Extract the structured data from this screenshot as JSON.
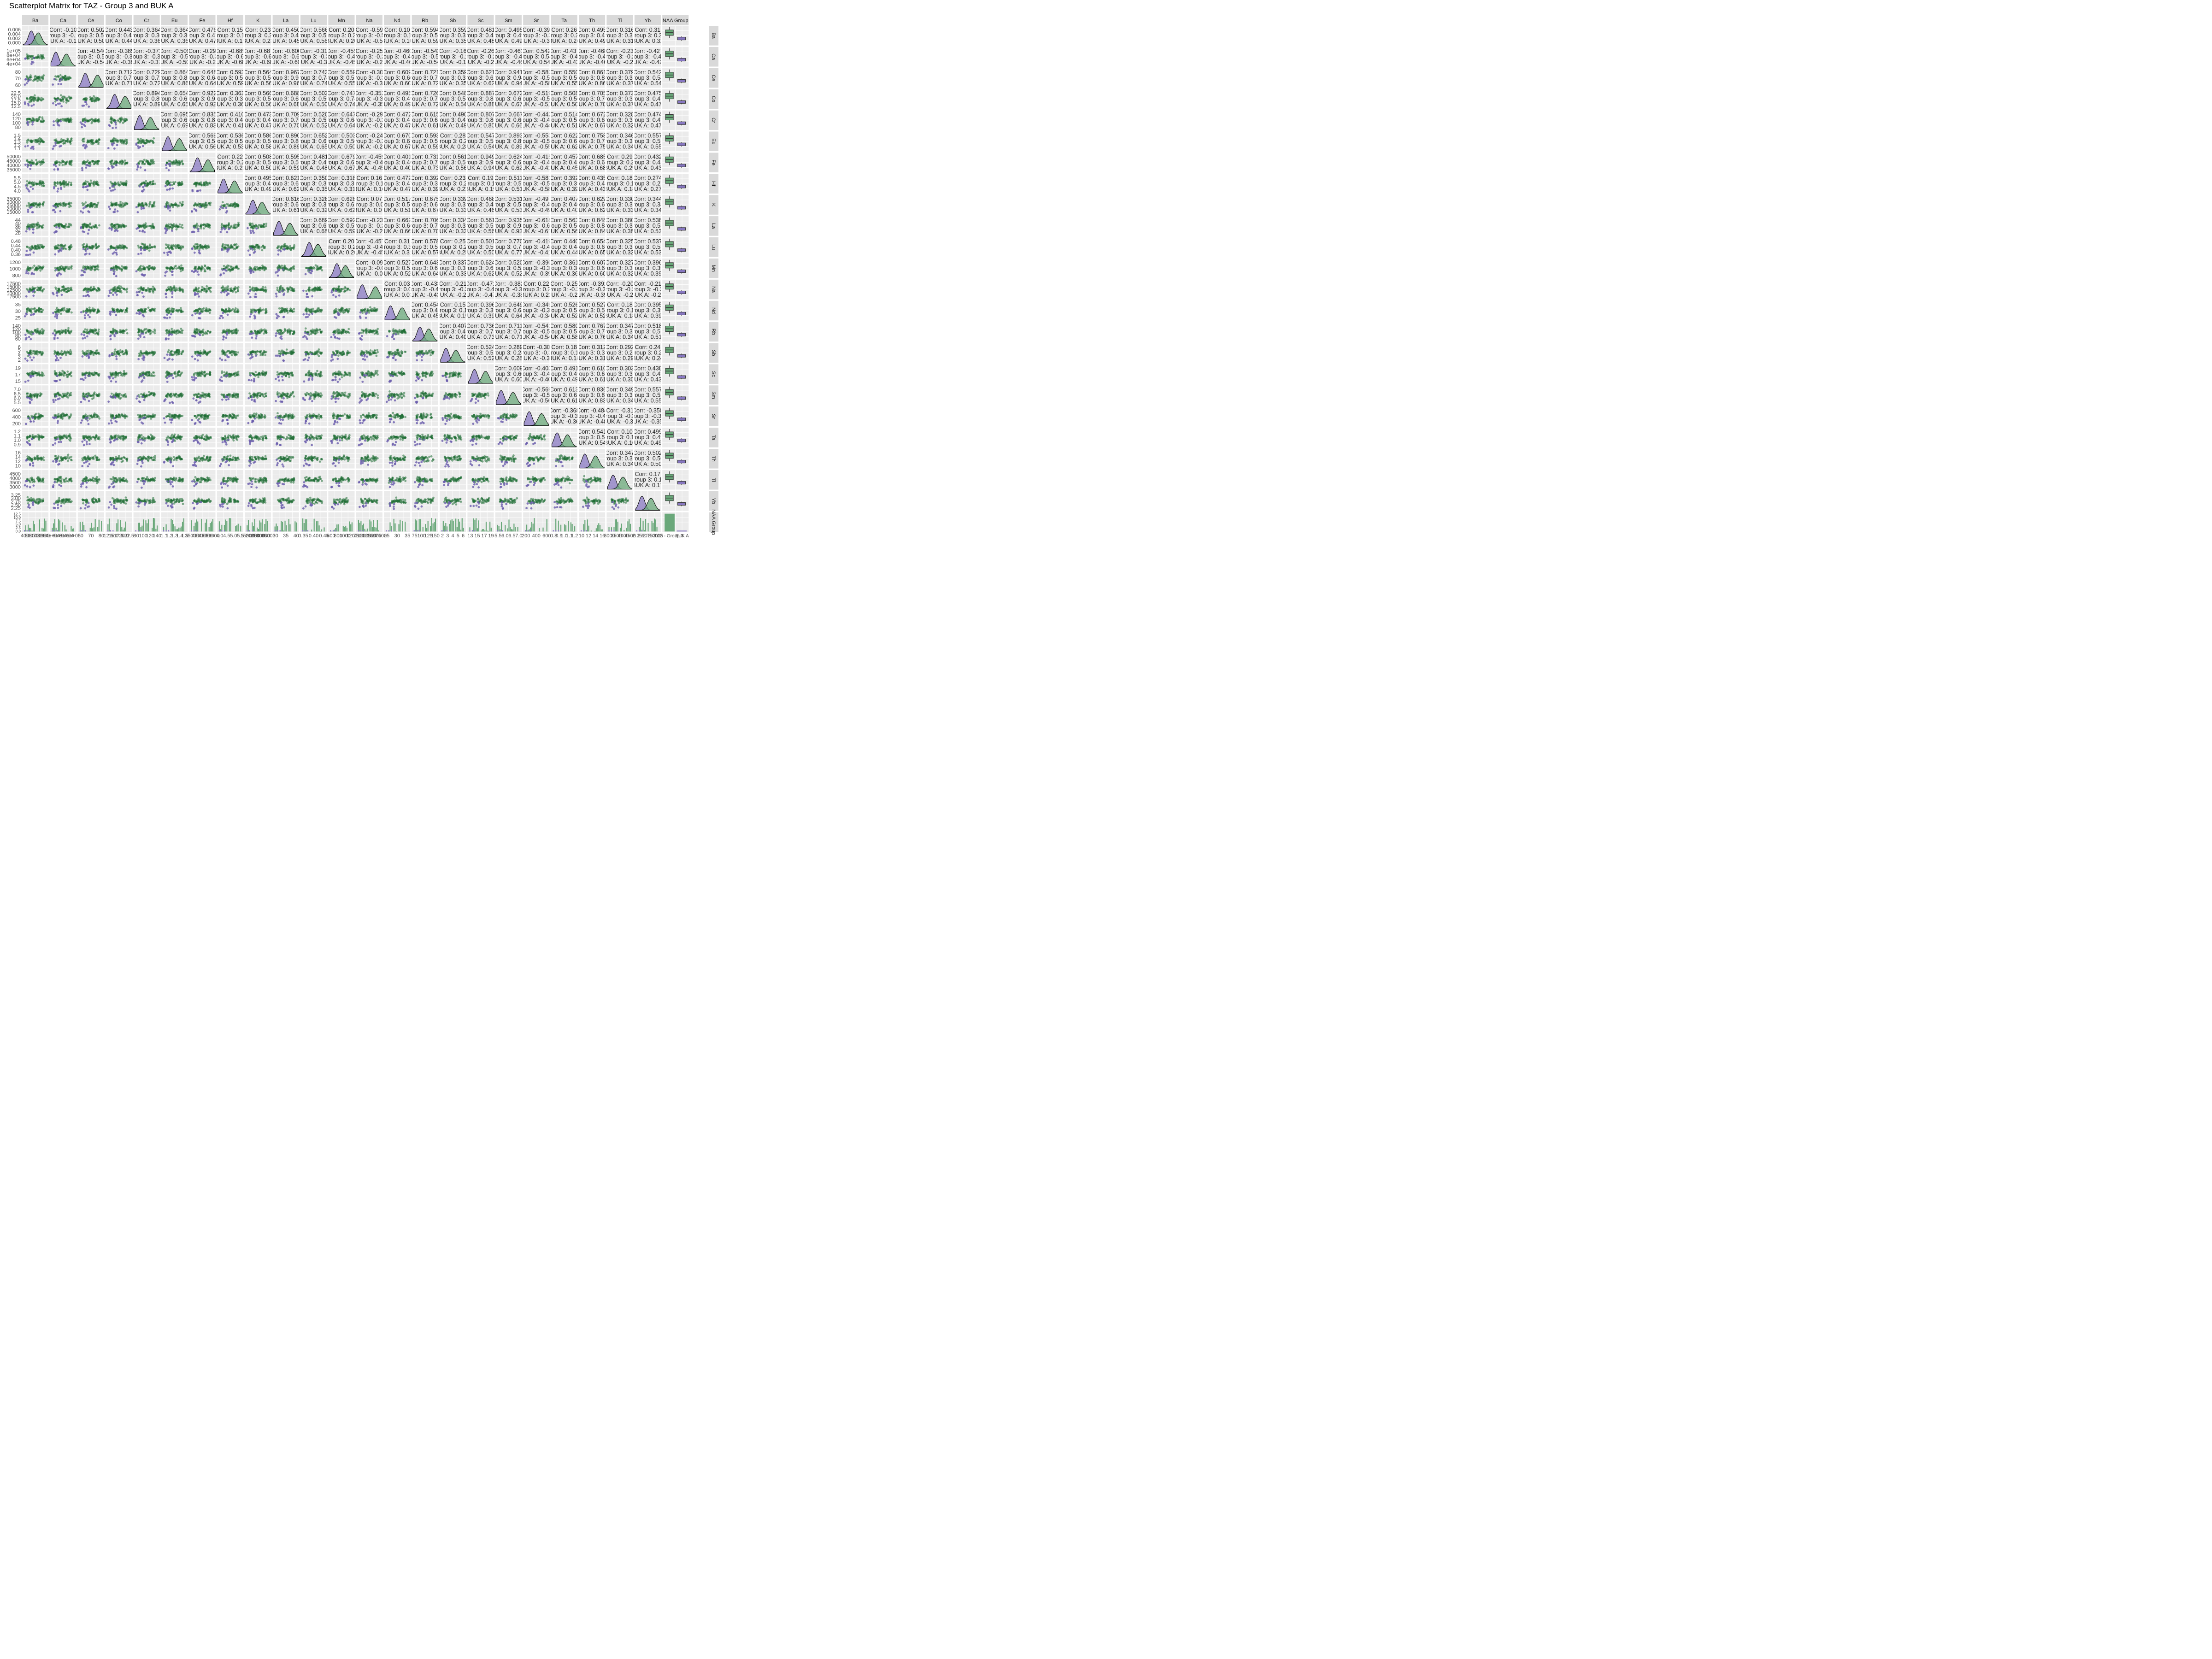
{
  "title": "Scatterplot Matrix for TAZ - Group 3 and BUK A",
  "chart_data": {
    "type": "scatterplot-matrix",
    "title": "Scatterplot Matrix for TAZ - Group 3 and BUK A",
    "variables": [
      "Ba",
      "Ca",
      "Ce",
      "Co",
      "Cr",
      "Eu",
      "Fe",
      "Hf",
      "K",
      "La",
      "Lu",
      "Mn",
      "Na",
      "Nd",
      "Rb",
      "Sb",
      "Sc",
      "Sm",
      "Sr",
      "Ta",
      "Th",
      "Ti",
      "Yb"
    ],
    "group_variable": "NAA Group",
    "group_column_header": "NAA Group",
    "group_row_header": "NAA Group",
    "groups": [
      {
        "name": "TAZ - Group 3",
        "color": "#1f6e34",
        "fill": "#6aa87a"
      },
      {
        "name": "BUK A",
        "color": "#6a5cad",
        "fill": "#8878c2"
      }
    ],
    "group_axis_labels": [
      "TAZ - Group 3",
      "BUK A"
    ],
    "group_count_ticks": [
      "0.0",
      "2.5",
      "5.0",
      "7.5",
      "10.0",
      "12.5"
    ],
    "y_tick_labels": {
      "Ba": [
        "0.006",
        "0.004",
        "0.002",
        "0.000"
      ],
      "Ca": [
        "1e+05",
        "8e+04",
        "6e+04",
        "4e+04"
      ],
      "Ce": [
        "80",
        "70",
        "60"
      ],
      "Co": [
        "22.5",
        "20.0",
        "17.5",
        "15.0",
        "12.5"
      ],
      "Cr": [
        "140",
        "120",
        "100",
        "80"
      ],
      "Eu": [
        "1.5",
        "1.4",
        "1.3",
        "1.2",
        "1.1"
      ],
      "Fe": [
        "50000",
        "45000",
        "40000",
        "35000"
      ],
      "Hf": [
        "5.5",
        "5.0",
        "4.5",
        "4.0"
      ],
      "K": [
        "35000",
        "30000",
        "25000",
        "20000",
        "15000"
      ],
      "La": [
        "44",
        "40",
        "36",
        "32",
        "28"
      ],
      "Lu": [
        "0.48",
        "0.44",
        "0.40",
        "0.36"
      ],
      "Mn": [
        "1200",
        "1000",
        "800"
      ],
      "Na": [
        "17500",
        "15000",
        "12500",
        "10000",
        "7500"
      ],
      "Nd": [
        "35",
        "30",
        "25"
      ],
      "Rb": [
        "140",
        "120",
        "100",
        "80",
        "60"
      ],
      "Sb": [
        "6",
        "5",
        "4",
        "3",
        "2"
      ],
      "Sc": [
        "19",
        "17",
        "15"
      ],
      "Sm": [
        "7.0",
        "6.5",
        "6.0",
        "5.5"
      ],
      "Sr": [
        "600",
        "400",
        "200"
      ],
      "Ta": [
        "1.2",
        "1.1",
        "1.0",
        "0.9"
      ],
      "Th": [
        "16",
        "14",
        "12",
        "10"
      ],
      "Ti": [
        "4500",
        "4000",
        "3500",
        "3000"
      ],
      "Yb": [
        "3.25",
        "3.00",
        "2.75",
        "2.50",
        "2.25"
      ]
    },
    "x_tick_labels": {
      "Ba": [
        "400",
        "500",
        "600",
        "700",
        "800",
        "900"
      ],
      "Ca": [
        "4e+04",
        "6e+04",
        "8e+04",
        "1e+05"
      ],
      "Ce": [
        "60",
        "70",
        "80"
      ],
      "Co": [
        "12.5",
        "15.0",
        "17.5",
        "20.0",
        "22.5"
      ],
      "Cr": [
        "80",
        "100",
        "120",
        "140"
      ],
      "Eu": [
        "1.1",
        "1.2",
        "1.3",
        "1.4",
        "1.5"
      ],
      "Fe": [
        "35000",
        "40000",
        "45000",
        "50000"
      ],
      "Hf": [
        "4.0",
        "4.5",
        "5.0",
        "5.5"
      ],
      "K": [
        "15000",
        "20000",
        "25000",
        "30000",
        "35000"
      ],
      "La": [
        "30",
        "35",
        "40"
      ],
      "Lu": [
        "0.35",
        "0.40",
        "0.45"
      ],
      "Mn": [
        "600",
        "800",
        "1000",
        "1200"
      ],
      "Na": [
        "7500",
        "10000",
        "12500",
        "15000",
        "17500"
      ],
      "Nd": [
        "25",
        "30",
        "35"
      ],
      "Rb": [
        "75",
        "100",
        "125",
        "150"
      ],
      "Sb": [
        "2",
        "3",
        "4",
        "5",
        "6"
      ],
      "Sc": [
        "13",
        "15",
        "17",
        "19"
      ],
      "Sm": [
        "5.5",
        "6.0",
        "6.5",
        "7.0"
      ],
      "Sr": [
        "200",
        "400",
        "600"
      ],
      "Ta": [
        "0.8",
        "0.9",
        "1.0",
        "1.1",
        "1.2"
      ],
      "Th": [
        "10",
        "12",
        "14",
        "16"
      ],
      "Ti": [
        "3000",
        "3500",
        "4000",
        "4500"
      ],
      "Yb": [
        "2.25",
        "2.50",
        "2.75",
        "3.00",
        "3.25"
      ]
    },
    "correlations": {
      "Ba": [
        "-0.10",
        "0.502",
        "0.443",
        "0.364",
        "0.364",
        "0.476",
        "0.15",
        "0.23",
        "0.450",
        "0.566",
        "0.20",
        "-0.59",
        "0.10",
        "0.594",
        "0.359",
        "0.481",
        "0.495",
        "-0.39",
        "0.26",
        "0.495",
        "0.316",
        "0.31"
      ],
      "Ca": [
        "-0.546",
        "-0.385",
        "-0.371",
        "-0.509",
        "-0.29",
        "-0.689",
        "-0.687",
        "-0.600",
        "-0.31",
        "-0.455",
        "-0.25",
        "-0.460",
        "-0.543",
        "-0.16",
        "-0.26",
        "-0.461",
        "0.542",
        "-0.437",
        "-0.468",
        "-0.23",
        "-0.427"
      ],
      "Ce": [
        "0.712",
        "0.729",
        "0.864",
        "0.648",
        "0.593",
        "0.564",
        "0.967",
        "0.743",
        "0.559",
        "-0.30",
        "0.609",
        "0.721",
        "0.359",
        "0.621",
        "0.941",
        "-0.582",
        "0.550",
        "0.861",
        "0.379",
        "0.542"
      ],
      "Co": [
        "0.894",
        "0.654",
        "0.922",
        "0.363",
        "0.566",
        "0.688",
        "0.503",
        "0.747",
        "-0.352",
        "0.495",
        "0.726",
        "0.548",
        "0.887",
        "0.673",
        "-0.519",
        "0.508",
        "0.705",
        "0.373",
        "0.475"
      ],
      "Cr": [
        "0.695",
        "0.835",
        "0.410",
        "0.473",
        "0.709",
        "0.520",
        "0.647",
        "-0.29",
        "0.472",
        "0.615",
        "0.490",
        "0.807",
        "0.667",
        "-0.442",
        "0.514",
        "0.672",
        "0.328",
        "0.474"
      ],
      "Eu": [
        "0.569",
        "0.536",
        "0.586",
        "0.890",
        "0.652",
        "0.503",
        "-0.24",
        "0.670",
        "0.593",
        "0.28",
        "0.547",
        "0.893",
        "-0.553",
        "0.622",
        "0.758",
        "0.346",
        "0.557"
      ],
      "Fe": [
        "0.22",
        "0.508",
        "0.595",
        "0.481",
        "0.679",
        "-0.459",
        "0.401",
        "0.731",
        "0.561",
        "0.949",
        "0.624",
        "-0.415",
        "0.457",
        "0.685",
        "0.29",
        "0.432"
      ],
      "Hf": [
        "0.495",
        "0.621",
        "0.350",
        "0.318",
        "0.16",
        "0.472",
        "0.392",
        "0.23",
        "0.19",
        "0.511",
        "-0.581",
        "0.392",
        "0.435",
        "0.18",
        "0.274"
      ],
      "K": [
        "0.616",
        "0.328",
        "0.628",
        "0.07",
        "0.517",
        "0.675",
        "0.339",
        "0.468",
        "0.531",
        "-0.497",
        "0.407",
        "0.629",
        "0.330",
        "0.344"
      ],
      "La": [
        "0.689",
        "0.592",
        "-0.23",
        "0.662",
        "0.706",
        "0.334",
        "0.561",
        "0.935",
        "-0.618",
        "0.563",
        "0.848",
        "0.380",
        "0.538"
      ],
      "Lu": [
        "0.20",
        "-0.457",
        "0.31",
        "0.578",
        "0.25",
        "0.501",
        "0.770",
        "-0.419",
        "0.440",
        "0.654",
        "0.325",
        "0.537"
      ],
      "Mn": [
        "-0.09",
        "0.527",
        "0.643",
        "0.337",
        "0.624",
        "0.520",
        "-0.390",
        "0.361",
        "0.607",
        "0.327",
        "0.396"
      ],
      "Na": [
        "0.03",
        "-0.433",
        "-0.21",
        "-0.471",
        "-0.382",
        "0.22",
        "-0.25",
        "-0.391",
        "-0.20",
        "-0.21"
      ],
      "Nd": [
        "0.454",
        "0.15",
        "0.396",
        "0.649",
        "-0.349",
        "0.526",
        "0.527",
        "0.18",
        "0.395"
      ],
      "Rb": [
        "0.407",
        "0.736",
        "0.711",
        "-0.541",
        "0.580",
        "0.767",
        "0.347",
        "0.518"
      ],
      "Sb": [
        "0.524",
        "0.289",
        "-0.30",
        "0.18",
        "0.312",
        "0.292",
        "0.24"
      ],
      "Sc": [
        "0.609",
        "-0.403",
        "0.491",
        "0.610",
        "0.303",
        "0.438"
      ],
      "Sm": [
        "-0.569",
        "0.613",
        "0.836",
        "0.349",
        "0.557"
      ],
      "Sr": [
        "-0.368",
        "-0.484",
        "-0.31",
        "-0.358"
      ],
      "Ta": [
        "0.541",
        "0.10",
        "0.499"
      ],
      "Th": [
        "0.347",
        "0.502"
      ],
      "Ti": [
        "0.17"
      ]
    },
    "cell_text": {
      "corr_prefix": "Corr: ",
      "group1_prefix": "Group 3: ",
      "group2_prefix": "BUK A: "
    },
    "grid": true,
    "diagonal": "density by group",
    "lower": "scatter by group",
    "upper": "correlation text",
    "last_column": "boxplot by group",
    "last_row": "histogram by group"
  }
}
